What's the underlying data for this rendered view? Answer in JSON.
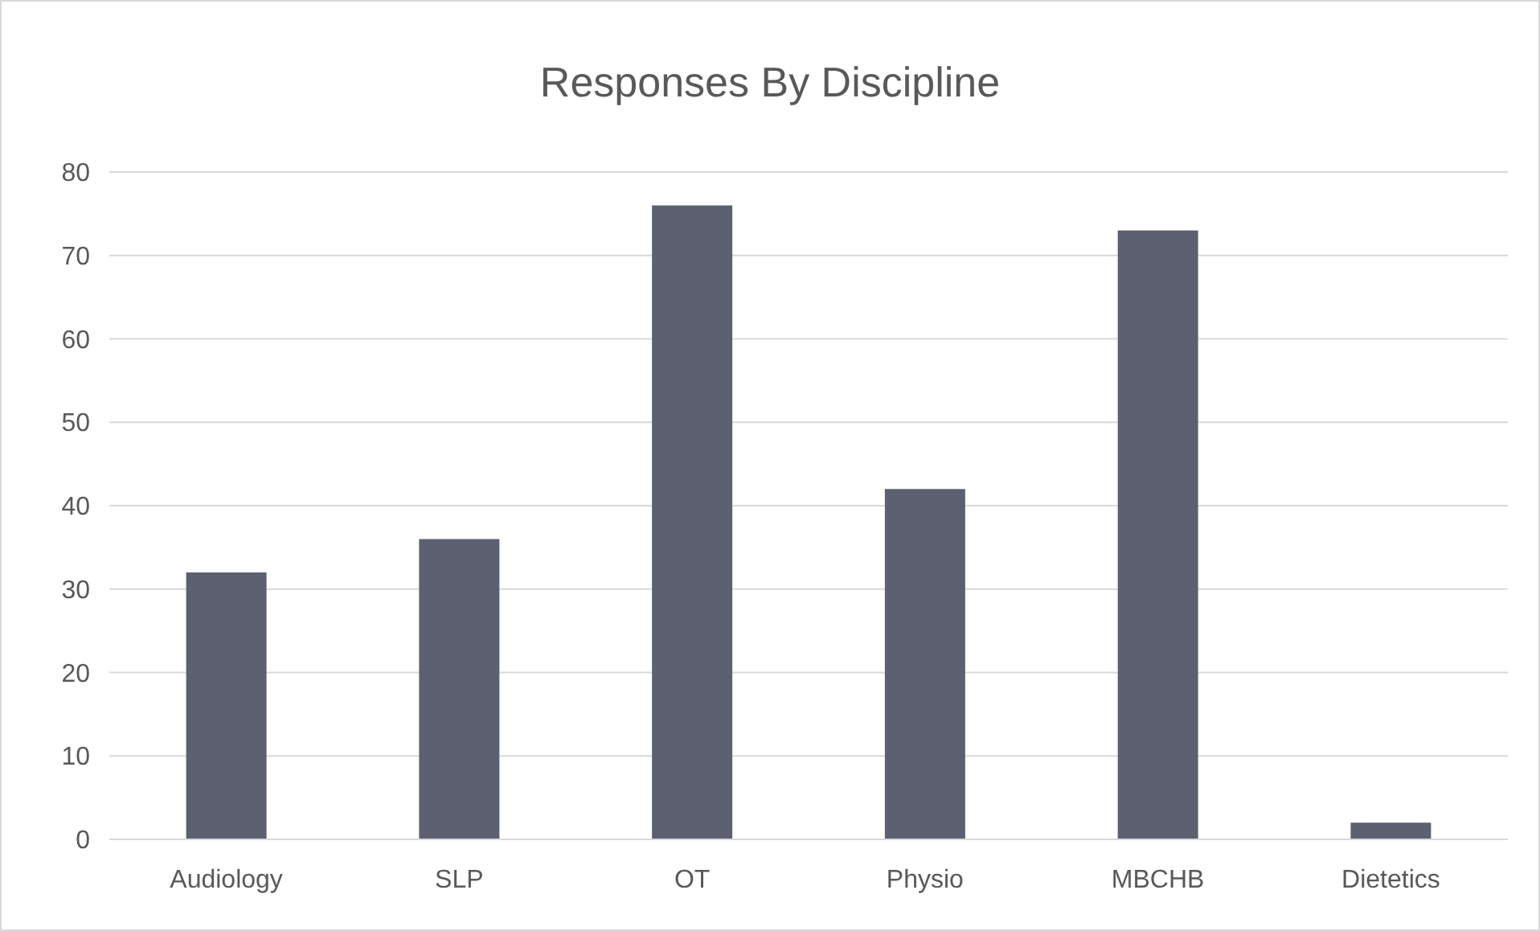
{
  "chart_data": {
    "type": "bar",
    "title": "Responses By Discipline",
    "categories": [
      "Audiology",
      "SLP",
      "OT",
      "Physio",
      "MBCHB",
      "Dietetics"
    ],
    "values": [
      32,
      36,
      76,
      42,
      73,
      2
    ],
    "color": "#5c6070",
    "ylim": [
      0,
      80
    ],
    "yticks": [
      0,
      10,
      20,
      30,
      40,
      50,
      60,
      70,
      80
    ],
    "grid": "y"
  }
}
